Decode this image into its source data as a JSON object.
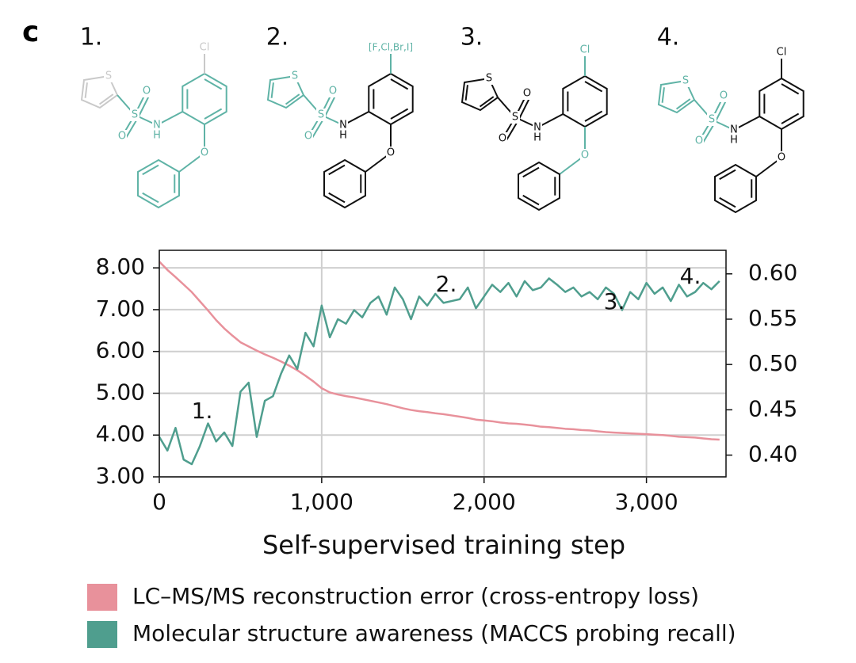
{
  "panel_label": "c",
  "structures": [
    {
      "label": "1.",
      "halogen": "Cl",
      "thiophene_s": "S",
      "sulfonyl_s": "S",
      "oxygens": [
        "O",
        "O"
      ],
      "n": "N",
      "h": "H",
      "ether_o": "O"
    },
    {
      "label": "2.",
      "halogen": "[F,Cl,Br,I]",
      "thiophene_s": "S",
      "sulfonyl_s": "S",
      "oxygens": [
        "O",
        "O"
      ],
      "n": "N",
      "h": "H",
      "ether_o": "O"
    },
    {
      "label": "3.",
      "halogen": "Cl",
      "thiophene_s": "S",
      "sulfonyl_s": "S",
      "oxygens": [
        "O",
        "O"
      ],
      "n": "N",
      "h": "H",
      "ether_o": "O"
    },
    {
      "label": "4.",
      "halogen": "Cl",
      "thiophene_s": "S",
      "sulfonyl_s": "S",
      "oxygens": [
        "O",
        "O"
      ],
      "n": "N",
      "h": "H",
      "ether_o": "O"
    }
  ],
  "chart_data": {
    "type": "line",
    "x_label": "Self-supervised training step",
    "x": [
      0,
      50,
      100,
      150,
      200,
      250,
      300,
      350,
      400,
      450,
      500,
      550,
      600,
      650,
      700,
      750,
      800,
      850,
      900,
      950,
      1000,
      1050,
      1100,
      1150,
      1200,
      1250,
      1300,
      1350,
      1400,
      1450,
      1500,
      1550,
      1600,
      1650,
      1700,
      1750,
      1800,
      1850,
      1900,
      1950,
      2000,
      2050,
      2100,
      2150,
      2200,
      2250,
      2300,
      2350,
      2400,
      2450,
      2500,
      2550,
      2600,
      2650,
      2700,
      2750,
      2800,
      2850,
      2900,
      2950,
      3000,
      3050,
      3100,
      3150,
      3200,
      3250,
      3300,
      3350,
      3400,
      3450
    ],
    "xlim": [
      0,
      3490
    ],
    "xticks": [
      0,
      {
        "value": 1000,
        "label": "1,000"
      },
      {
        "value": 2000,
        "label": "2,000"
      },
      {
        "value": 3000,
        "label": "3,000"
      }
    ],
    "ylim": [
      3,
      8.42
    ],
    "yticks": [
      {
        "value": 3,
        "label": "3.00"
      },
      {
        "value": 4,
        "label": "4.00"
      },
      {
        "value": 5,
        "label": "5.00"
      },
      {
        "value": 6,
        "label": "6.00"
      },
      {
        "value": 7,
        "label": "7.00"
      },
      {
        "value": 8,
        "label": "8.00"
      }
    ],
    "y2lim": [
      0.376,
      0.626
    ],
    "y2ticks": [
      {
        "value": 0.4,
        "label": "0.40"
      },
      {
        "value": 0.45,
        "label": "0.45"
      },
      {
        "value": 0.5,
        "label": "0.50"
      },
      {
        "value": 0.55,
        "label": "0.55"
      },
      {
        "value": 0.6,
        "label": "0.60"
      }
    ],
    "grid": true,
    "legend": "bottom",
    "annotations": [
      "1.",
      "2.",
      "3.",
      "4."
    ],
    "series": [
      {
        "name": "LC–MS/MS reconstruction error (cross-entropy loss)",
        "color": "#e8919b",
        "axis": "y",
        "values": [
          8.15,
          7.95,
          7.78,
          7.6,
          7.42,
          7.2,
          6.98,
          6.75,
          6.55,
          6.38,
          6.22,
          6.12,
          6.02,
          5.93,
          5.85,
          5.76,
          5.66,
          5.55,
          5.42,
          5.28,
          5.12,
          5.02,
          4.97,
          4.93,
          4.9,
          4.86,
          4.82,
          4.78,
          4.74,
          4.69,
          4.64,
          4.6,
          4.57,
          4.55,
          4.52,
          4.5,
          4.47,
          4.44,
          4.41,
          4.37,
          4.35,
          4.33,
          4.3,
          4.28,
          4.27,
          4.25,
          4.23,
          4.2,
          4.19,
          4.17,
          4.15,
          4.14,
          4.12,
          4.11,
          4.09,
          4.07,
          4.06,
          4.05,
          4.04,
          4.03,
          4.02,
          4.01,
          4.0,
          3.98,
          3.96,
          3.95,
          3.94,
          3.92,
          3.9,
          3.89
        ]
      },
      {
        "name": "Molecular structure awareness (MACCS probing recall)",
        "color": "#4f9e8e",
        "axis": "y2",
        "values": [
          0.42,
          0.405,
          0.43,
          0.395,
          0.39,
          0.41,
          0.435,
          0.415,
          0.425,
          0.41,
          0.47,
          0.48,
          0.42,
          0.46,
          0.465,
          0.49,
          0.51,
          0.495,
          0.535,
          0.52,
          0.565,
          0.53,
          0.55,
          0.545,
          0.56,
          0.552,
          0.568,
          0.575,
          0.555,
          0.585,
          0.572,
          0.55,
          0.575,
          0.565,
          0.578,
          0.568,
          0.57,
          0.572,
          0.585,
          0.562,
          0.575,
          0.588,
          0.58,
          0.59,
          0.575,
          0.592,
          0.582,
          0.585,
          0.595,
          0.588,
          0.58,
          0.585,
          0.575,
          0.58,
          0.572,
          0.585,
          0.578,
          0.56,
          0.58,
          0.572,
          0.59,
          0.578,
          0.585,
          0.57,
          0.588,
          0.575,
          0.58,
          0.59,
          0.583,
          0.592
        ]
      }
    ]
  }
}
